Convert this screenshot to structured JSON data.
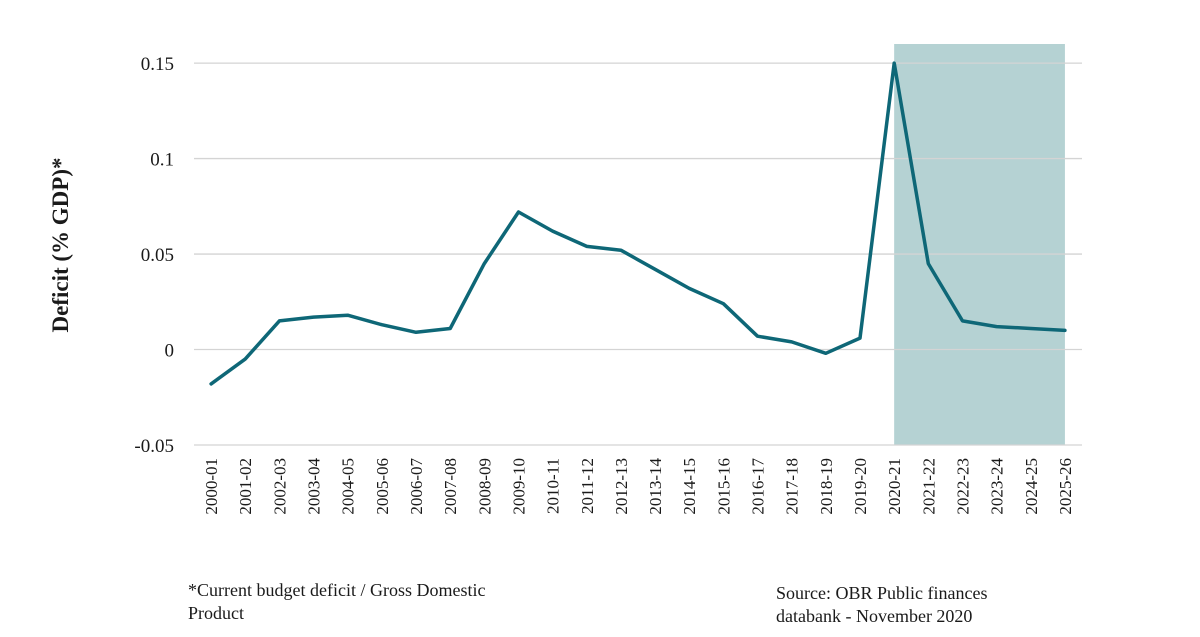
{
  "chart_data": {
    "type": "line",
    "ylabel": "Deficit (% GDP)*",
    "ylim": [
      -0.05,
      0.16
    ],
    "yticks": [
      -0.05,
      0,
      0.05,
      0.1,
      0.15
    ],
    "ytick_labels": [
      "-0.05",
      "0",
      "0.05",
      "0.1",
      "0.15"
    ],
    "grid": true,
    "categories": [
      "2000-01",
      "2001-02",
      "2002-03",
      "2003-04",
      "2004-05",
      "2005-06",
      "2006-07",
      "2007-08",
      "2008-09",
      "2009-10",
      "2010-11",
      "2011-12",
      "2012-13",
      "2013-14",
      "2014-15",
      "2015-16",
      "2016-17",
      "2017-18",
      "2018-19",
      "2019-20",
      "2020-21",
      "2021-22",
      "2022-23",
      "2023-24",
      "2024-25",
      "2025-26"
    ],
    "series": [
      {
        "values": [
          -0.018,
          -0.005,
          0.015,
          0.017,
          0.018,
          0.013,
          0.009,
          0.011,
          0.045,
          0.072,
          0.062,
          0.054,
          0.052,
          0.042,
          0.032,
          0.024,
          0.007,
          0.004,
          -0.002,
          0.006,
          0.15,
          0.045,
          0.015,
          0.012,
          0.011,
          0.01
        ],
        "color": "#0e6777"
      }
    ],
    "shaded_region": {
      "from": "2020-21",
      "to": "2025-26",
      "color": "#b5d2d3"
    }
  },
  "footnote": "*Current budget deficit / Gross Domestic Product",
  "source": "Source: OBR Public finances databank - November 2020"
}
